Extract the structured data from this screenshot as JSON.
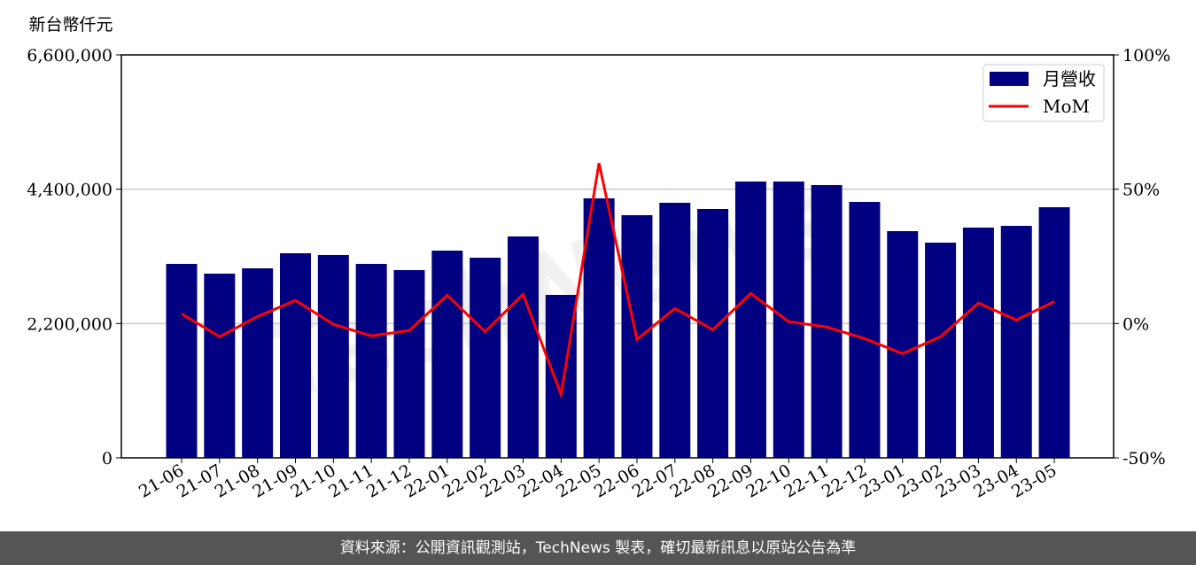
{
  "chart_data": {
    "type": "bar",
    "ylabel": "新台幣仟元",
    "categories": [
      "21-06",
      "21-07",
      "21-08",
      "21-09",
      "21-10",
      "21-11",
      "21-12",
      "22-01",
      "22-02",
      "22-03",
      "22-04",
      "22-05",
      "22-06",
      "22-07",
      "22-08",
      "22-09",
      "22-10",
      "22-11",
      "22-12",
      "23-01",
      "23-02",
      "23-03",
      "23-04",
      "23-05"
    ],
    "series": [
      {
        "name": "月營收",
        "type": "bar",
        "axis": "left",
        "color": "#000080",
        "values": [
          3177000,
          3017000,
          3104000,
          3351000,
          3322000,
          3177000,
          3075000,
          3394000,
          3278000,
          3626000,
          2669000,
          4250000,
          3975000,
          4178000,
          4076000,
          4526000,
          4526000,
          4468000,
          4192000,
          3713000,
          3525000,
          3771000,
          3800000,
          4105000
        ]
      },
      {
        "name": "MoM",
        "type": "line",
        "axis": "right",
        "color": "#ff0000",
        "values": [
          3.6,
          -4.9,
          2.6,
          8.6,
          -0.3,
          -4.6,
          -2.6,
          10.5,
          -3.0,
          10.9,
          -26.4,
          59.7,
          -5.9,
          5.6,
          -2.3,
          11.2,
          0.7,
          -1.3,
          -5.6,
          -11.2,
          -4.9,
          7.6,
          1.3,
          8.2
        ]
      }
    ],
    "ylim": [
      0,
      6600000
    ],
    "y2lim": [
      -50,
      100
    ],
    "yticks": [
      "0",
      "2,200,000",
      "4,400,000",
      "6,600,000"
    ],
    "y2ticks": [
      "-50%",
      "0%",
      "50%",
      "100%"
    ],
    "grid": true,
    "legend": "top-right",
    "watermark": "TechNews"
  },
  "footer": "資料來源：公開資訊觀測站，TechNews 製表，確切最新訊息以原站公告為準"
}
